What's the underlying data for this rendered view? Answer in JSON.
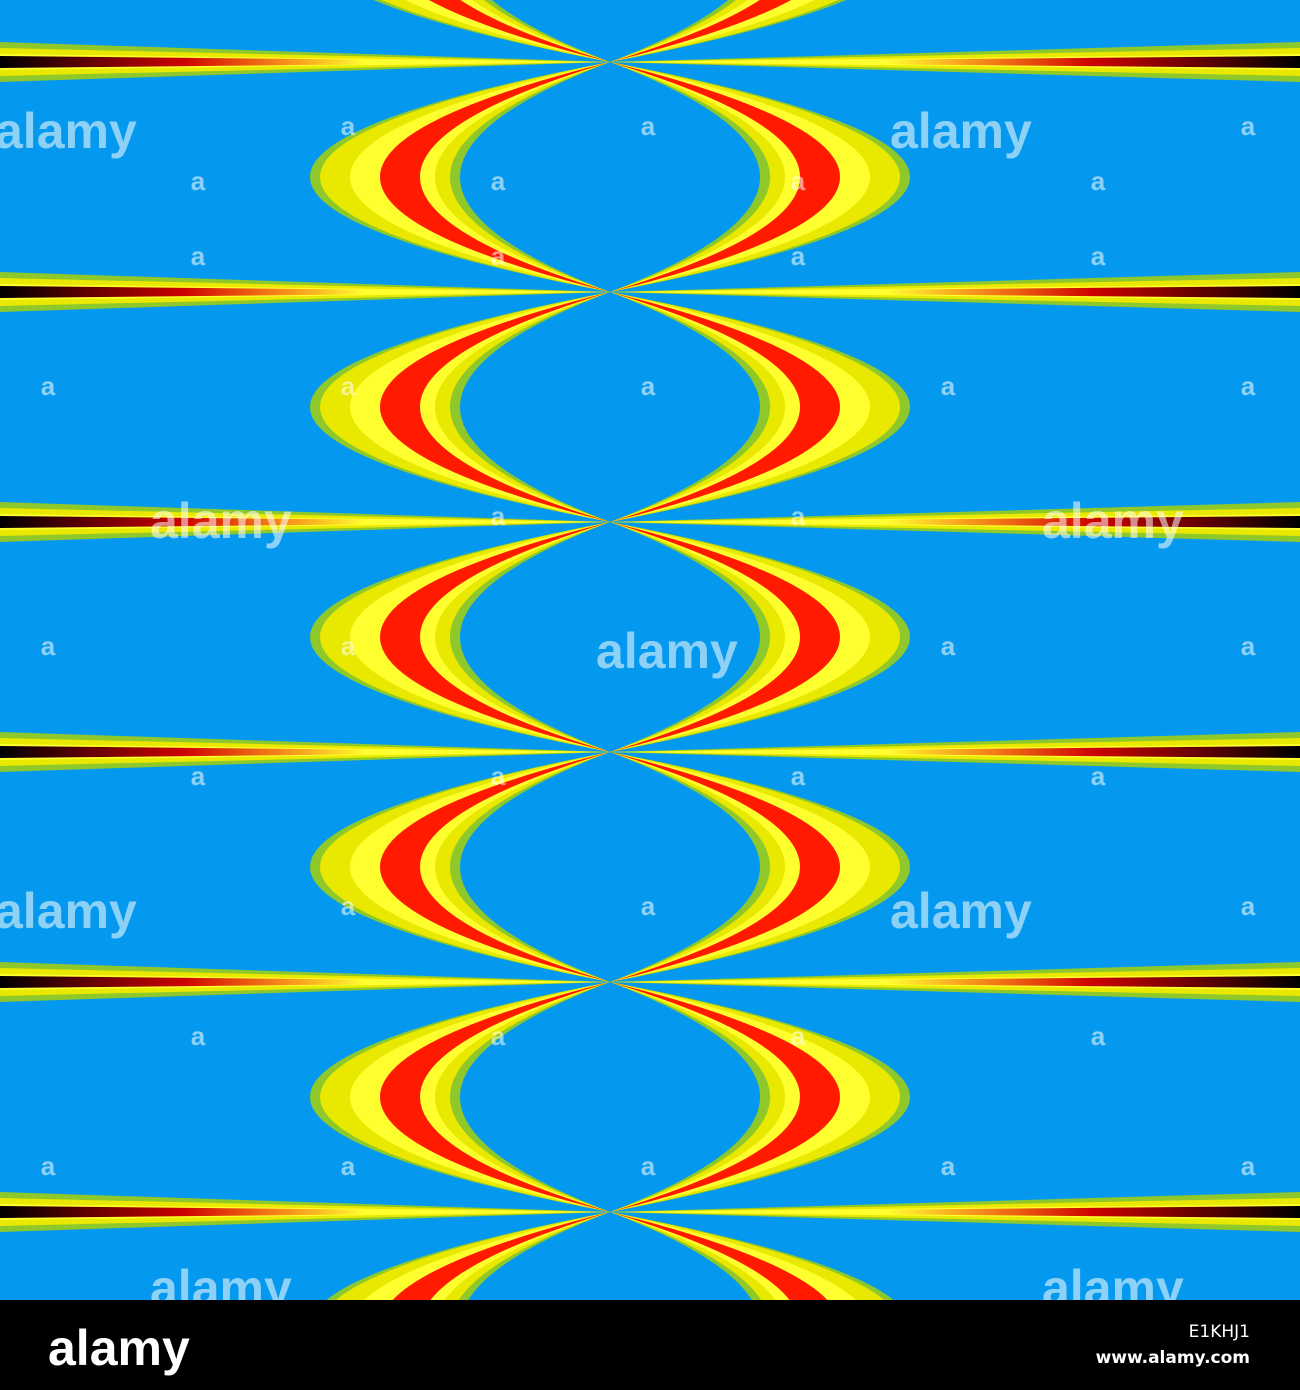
{
  "watermark": {
    "logo": "alamy",
    "mark": "a"
  },
  "footer": {
    "logo": "alamy",
    "image_id": "E1KHJ1",
    "url": "www.alamy.com"
  }
}
